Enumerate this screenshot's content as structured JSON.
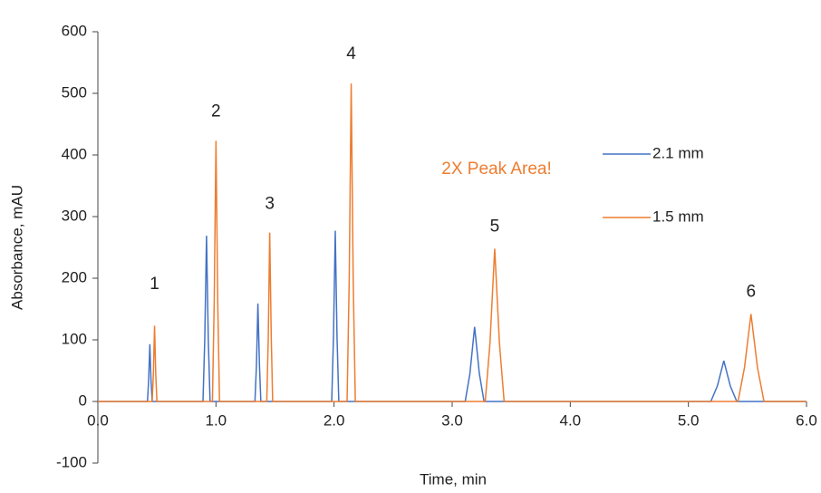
{
  "chart_data": {
    "type": "line",
    "x_label": "Time, min",
    "y_label": "Absorbance, mAU",
    "annotation": "2X Peak Area!",
    "peak_labels": [
      "1",
      "2",
      "3",
      "4",
      "5",
      "6"
    ],
    "x": [
      0,
      0.42,
      0.43,
      0.44,
      0.45,
      0.46,
      0.47,
      0.48,
      0.49,
      0.5,
      0.89,
      0.905,
      0.92,
      0.935,
      0.95,
      0.97,
      0.985,
      1.0,
      1.015,
      1.03,
      1.33,
      1.343,
      1.355,
      1.368,
      1.38,
      1.43,
      1.443,
      1.455,
      1.468,
      1.48,
      1.98,
      1.995,
      2.01,
      2.025,
      2.04,
      2.11,
      2.128,
      2.145,
      2.162,
      2.18,
      3.11,
      3.15,
      3.19,
      3.23,
      3.27,
      3.28,
      3.32,
      3.36,
      3.4,
      3.44,
      5.19,
      5.245,
      5.3,
      5.355,
      5.41,
      5.42,
      5.475,
      5.53,
      5.585,
      5.64,
      6.0
    ],
    "series": [
      {
        "name": "2.1 mm",
        "color": "#4472c4",
        "values": [
          0,
          0,
          35,
          93,
          35,
          0,
          0,
          0,
          0,
          0,
          0,
          100,
          269,
          100,
          0,
          0,
          0,
          0,
          0,
          0,
          0,
          60,
          159,
          60,
          0,
          0,
          0,
          0,
          0,
          0,
          0,
          105,
          277,
          105,
          0,
          0,
          0,
          0,
          0,
          0,
          0,
          45,
          121,
          45,
          0,
          0,
          0,
          0,
          0,
          0,
          0,
          25,
          66,
          25,
          0,
          0,
          0,
          0,
          0,
          0,
          0
        ]
      },
      {
        "name": "1.5 mm",
        "color": "#ed7d31",
        "values": [
          0,
          0,
          0,
          0,
          0,
          0,
          45,
          123,
          45,
          0,
          0,
          0,
          0,
          0,
          0,
          0,
          160,
          423,
          160,
          0,
          0,
          0,
          0,
          0,
          0,
          0,
          105,
          274,
          105,
          0,
          0,
          0,
          0,
          0,
          0,
          0,
          195,
          516,
          195,
          0,
          0,
          0,
          0,
          0,
          0,
          0,
          95,
          248,
          95,
          0,
          0,
          0,
          0,
          0,
          0,
          0,
          55,
          142,
          55,
          0,
          0
        ]
      }
    ],
    "xlim": [
      0,
      6
    ],
    "xticks": [
      {
        "value": 0,
        "label": "0.0"
      },
      {
        "value": 1,
        "label": "1.0"
      },
      {
        "value": 2,
        "label": "2.0"
      },
      {
        "value": 3,
        "label": "3.0"
      },
      {
        "value": 4,
        "label": "4.0"
      },
      {
        "value": 5,
        "label": "5.0"
      },
      {
        "value": 6,
        "label": "6.0"
      }
    ],
    "ylim": [
      -100,
      600
    ],
    "yticks": [
      -100,
      0,
      100,
      200,
      300,
      400,
      500,
      600
    ],
    "grid": false,
    "legend": "right"
  }
}
